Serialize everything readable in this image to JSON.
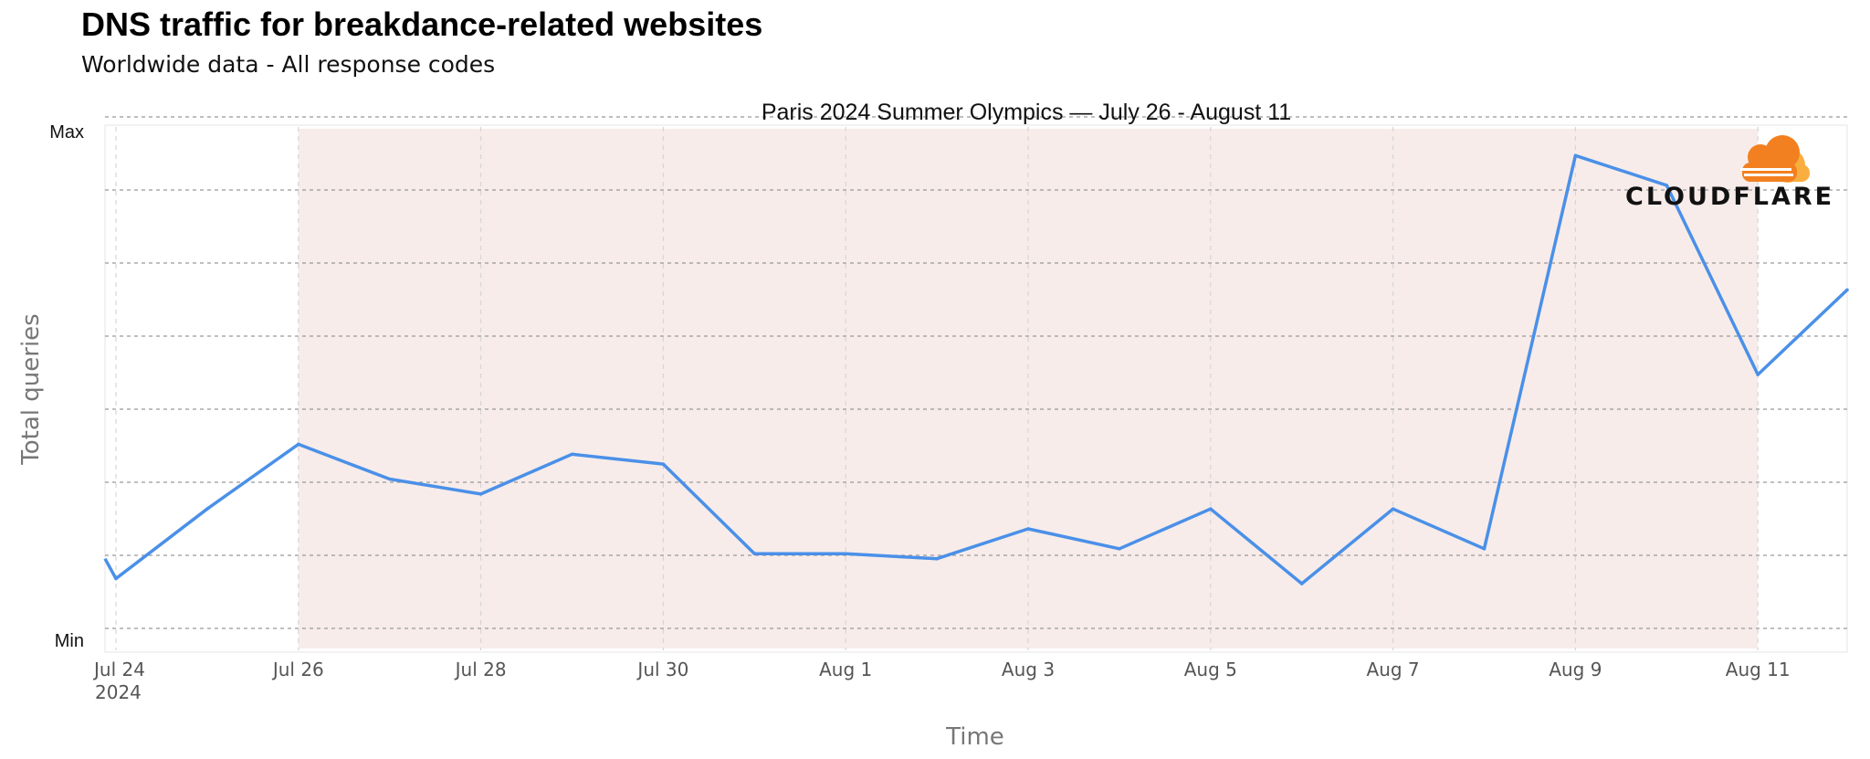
{
  "title": "DNS traffic for breakdance-related websites",
  "subtitle": "Worldwide data - All response codes",
  "brand": {
    "name": "CLOUDFLARE",
    "color_primary": "#F38020",
    "color_secondary": "#FAAE40"
  },
  "chart_data": {
    "type": "line",
    "annotation": "Paris 2024 Summer Olympics — July 26 - August 11",
    "highlight_range": [
      "2024-07-26",
      "2024-08-11"
    ],
    "highlight_color": "#F7ECEA",
    "xlabel": "Time",
    "ylabel": "Total queries",
    "y_tick_labels": {
      "max": "Max",
      "min": "Min"
    },
    "ylim": [
      0,
      1
    ],
    "x_tick_labels": [
      "Jul 24",
      "Jul 26",
      "Jul 28",
      "Jul 30",
      "Aug 1",
      "Aug 3",
      "Aug 5",
      "Aug 7",
      "Aug 9",
      "Aug 11"
    ],
    "x_year_label": "2024",
    "series": [
      {
        "color": "#4A90E8",
        "x": [
          "2024-07-24",
          "2024-07-25",
          "2024-07-26",
          "2024-07-27",
          "2024-07-28",
          "2024-07-29",
          "2024-07-30",
          "2024-07-31",
          "2024-08-01",
          "2024-08-02",
          "2024-08-03",
          "2024-08-04",
          "2024-08-05",
          "2024-08-06",
          "2024-08-07",
          "2024-08-08",
          "2024-08-09",
          "2024-08-10",
          "2024-08-11",
          "2024-08-12"
        ],
        "values": [
          0.1,
          0.24,
          0.37,
          0.3,
          0.27,
          0.35,
          0.33,
          0.15,
          0.15,
          0.14,
          0.2,
          0.16,
          0.24,
          0.09,
          0.24,
          0.16,
          0.95,
          0.89,
          0.51,
          0.68
        ]
      }
    ],
    "start_value": 0.14,
    "grid": true
  }
}
